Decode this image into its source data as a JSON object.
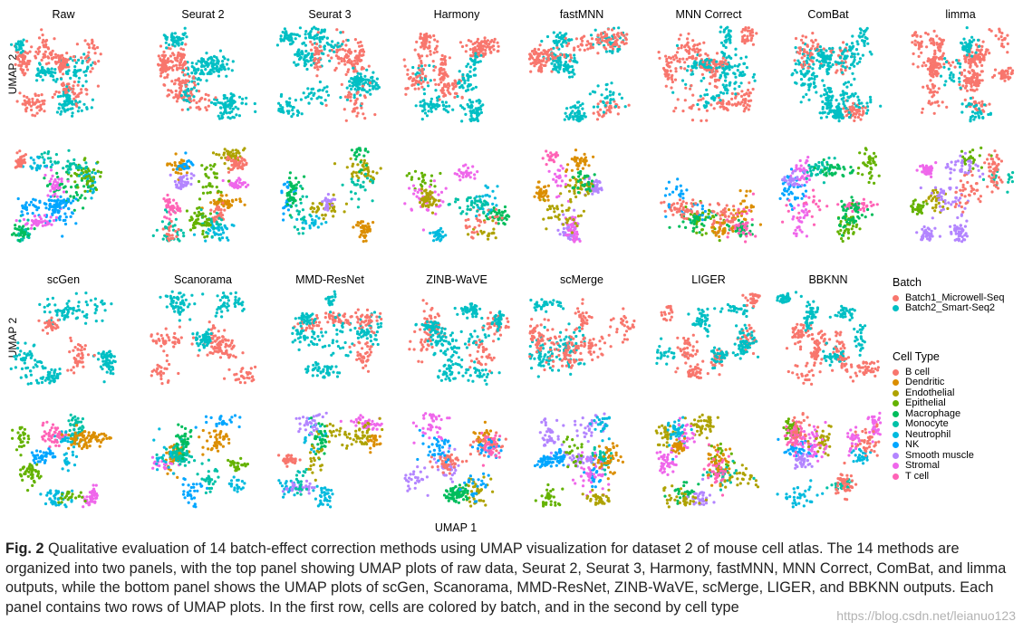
{
  "chart_data": {
    "type": "scatter",
    "title": "",
    "xlabel": "UMAP 1",
    "ylabel": "UMAP 2",
    "top_panel_methods": [
      "Raw",
      "Seurat 2",
      "Seurat 3",
      "Harmony",
      "fastMNN",
      "MNN Correct",
      "ComBat",
      "limma"
    ],
    "bottom_panel_methods": [
      "scGen",
      "Scanorama",
      "MMD-ResNet",
      "ZINB-WaVE",
      "scMerge",
      "LIGER",
      "BBKNN"
    ],
    "row_coloring": [
      "Batch",
      "Cell Type"
    ],
    "batch_legend": {
      "title": "Batch",
      "entries": [
        "Batch1_Microwell-Seq",
        "Batch2_Smart-Seq2"
      ],
      "colors": [
        "#F8766D",
        "#00BFC4"
      ]
    },
    "celltype_legend": {
      "title": "Cell Type",
      "entries": [
        "B cell",
        "Dendritic",
        "Endothelial",
        "Epithelial",
        "Macrophage",
        "Monocyte",
        "Neutrophil",
        "NK",
        "Smooth muscle",
        "Stromal",
        "T cell"
      ],
      "colors": [
        "#F8766D",
        "#DB8E00",
        "#AEA200",
        "#64B200",
        "#00BD5C",
        "#00C1A7",
        "#00BADE",
        "#00A6FF",
        "#B385FF",
        "#EF67EB",
        "#FF63B6"
      ]
    }
  },
  "caption": {
    "label": "Fig. 2",
    "text": " Qualitative evaluation of 14 batch-effect correction methods using UMAP visualization for dataset 2 of mouse cell atlas. The 14 methods are organized into two panels, with the top panel showing UMAP plots of raw data, Seurat 2, Seurat 3, Harmony, fastMNN, MNN Correct, ComBat, and limma outputs, while the bottom panel shows the UMAP plots of scGen, Scanorama, MMD-ResNet, ZINB-WaVE, scMerge, LIGER, and BBKNN outputs. Each panel contains two rows of UMAP plots. In the first row, cells are colored by batch, and in the second by cell type"
  },
  "watermark": "https://blog.csdn.net/leianuo123"
}
